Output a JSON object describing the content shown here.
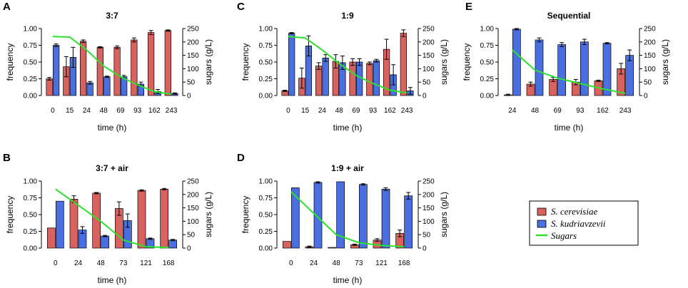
{
  "colors": {
    "cerevisiae": "#d9625f",
    "kudriavzevii": "#4a6fe0",
    "sugars": "#2ee02e",
    "axis": "#000000"
  },
  "legend": {
    "items": [
      {
        "label": "S. cerevisiae",
        "key": "cerevisiae"
      },
      {
        "label": "S. kudriavzevii",
        "key": "kudriavzevii"
      },
      {
        "label": "Sugars",
        "key": "sugars"
      }
    ]
  },
  "chart_data": [
    {
      "panel": "A",
      "title": "3:7",
      "type": "bar+line",
      "xlabel": "time (h)",
      "ylabel": "frequency",
      "y2label": "sugars (g/L)",
      "ylim": [
        0,
        1
      ],
      "y2lim": [
        0,
        250
      ],
      "yticks": [
        "0.00",
        "0.25",
        "0.50",
        "0.75",
        "1.00"
      ],
      "y2ticks": [
        "0",
        "50",
        "100",
        "150",
        "200",
        "250"
      ],
      "categories": [
        "0",
        "15",
        "24",
        "48",
        "69",
        "93",
        "162",
        "243"
      ],
      "series": [
        {
          "name": "S. cerevisiae",
          "values": [
            0.25,
            0.43,
            0.81,
            0.72,
            0.72,
            0.83,
            0.94,
            0.97
          ],
          "errors": [
            0.02,
            0.15,
            0.02,
            0.01,
            0.02,
            0.03,
            0.03,
            0.01
          ]
        },
        {
          "name": "S. kudriavzevii",
          "values": [
            0.75,
            0.57,
            0.19,
            0.28,
            0.28,
            0.17,
            0.06,
            0.03
          ],
          "errors": [
            0.02,
            0.15,
            0.02,
            0.01,
            0.02,
            0.03,
            0.03,
            0.01
          ]
        }
      ],
      "sugars": [
        220,
        218,
        170,
        110,
        70,
        40,
        15,
        5
      ]
    },
    {
      "panel": "C",
      "title": "1:9",
      "type": "bar+line",
      "xlabel": "time (h)",
      "ylabel": "frequency",
      "y2label": "sugars (g/L)",
      "ylim": [
        0,
        1
      ],
      "y2lim": [
        0,
        250
      ],
      "yticks": [
        "0.00",
        "0.25",
        "0.50",
        "0.75",
        "1.00"
      ],
      "y2ticks": [
        "0",
        "50",
        "100",
        "150",
        "200",
        "250"
      ],
      "categories": [
        "0",
        "15",
        "24",
        "48",
        "69",
        "93",
        "162",
        "243"
      ],
      "series": [
        {
          "name": "S. cerevisiae",
          "values": [
            0.07,
            0.26,
            0.44,
            0.51,
            0.5,
            0.48,
            0.69,
            0.93
          ],
          "errors": [
            0.01,
            0.15,
            0.05,
            0.1,
            0.05,
            0.02,
            0.15,
            0.05
          ]
        },
        {
          "name": "S. kudriavzevii",
          "values": [
            0.93,
            0.74,
            0.56,
            0.49,
            0.5,
            0.52,
            0.31,
            0.07
          ],
          "errors": [
            0.01,
            0.15,
            0.05,
            0.1,
            0.05,
            0.02,
            0.15,
            0.05
          ]
        }
      ],
      "sugars": [
        220,
        215,
        170,
        120,
        75,
        45,
        20,
        10
      ]
    },
    {
      "panel": "E",
      "title": "Sequential",
      "type": "bar+line",
      "xlabel": "time (h)",
      "ylabel": "frequency",
      "y2label": "sugars (g/L)",
      "ylim": [
        0,
        1
      ],
      "y2lim": [
        0,
        250
      ],
      "yticks": [
        "0.00",
        "0.25",
        "0.50",
        "0.75",
        "1.00"
      ],
      "y2ticks": [
        "0",
        "50",
        "100",
        "150",
        "200",
        "250"
      ],
      "categories": [
        "24",
        "48",
        "69",
        "93",
        "162",
        "243"
      ],
      "series": [
        {
          "name": "S. cerevisiae",
          "values": [
            0.01,
            0.17,
            0.24,
            0.2,
            0.22,
            0.4
          ],
          "errors": [
            0.01,
            0.03,
            0.03,
            0.04,
            0.01,
            0.08
          ]
        },
        {
          "name": "S. kudriavzevii",
          "values": [
            0.99,
            0.83,
            0.76,
            0.8,
            0.78,
            0.6
          ],
          "errors": [
            0.01,
            0.03,
            0.03,
            0.04,
            0.01,
            0.08
          ]
        }
      ],
      "sugars": [
        170,
        95,
        65,
        45,
        25,
        8
      ]
    },
    {
      "panel": "B",
      "title": "3:7 + air",
      "type": "bar+line",
      "xlabel": "time (h)",
      "ylabel": "frequency",
      "y2label": "sugars (g/L)",
      "ylim": [
        0,
        1
      ],
      "y2lim": [
        0,
        250
      ],
      "yticks": [
        "0.00",
        "0.25",
        "0.50",
        "0.75",
        "1.00"
      ],
      "y2ticks": [
        "0",
        "50",
        "100",
        "150",
        "200",
        "250"
      ],
      "categories": [
        "0",
        "24",
        "48",
        "73",
        "121",
        "168"
      ],
      "series": [
        {
          "name": "S. cerevisiae",
          "values": [
            0.3,
            0.73,
            0.82,
            0.59,
            0.86,
            0.88
          ],
          "errors": [
            0.0,
            0.05,
            0.01,
            0.1,
            0.01,
            0.01
          ]
        },
        {
          "name": "S. kudriavzevii",
          "values": [
            0.7,
            0.27,
            0.18,
            0.41,
            0.14,
            0.12
          ],
          "errors": [
            0.0,
            0.05,
            0.01,
            0.1,
            0.01,
            0.01
          ]
        }
      ],
      "sugars": [
        220,
        160,
        100,
        30,
        5,
        2
      ]
    },
    {
      "panel": "D",
      "title": "1:9 + air",
      "type": "bar+line",
      "xlabel": "time (h)",
      "ylabel": "frequency",
      "y2label": "sugars (g/L)",
      "ylim": [
        0,
        1
      ],
      "y2lim": [
        0,
        250
      ],
      "yticks": [
        "0.00",
        "0.25",
        "0.50",
        "0.75",
        "1.00"
      ],
      "y2ticks": [
        "0",
        "50",
        "100",
        "150",
        "200",
        "250"
      ],
      "categories": [
        "0",
        "24",
        "48",
        "73",
        "121",
        "168"
      ],
      "series": [
        {
          "name": "S. cerevisiae",
          "values": [
            0.1,
            0.02,
            0.01,
            0.05,
            0.12,
            0.22
          ],
          "errors": [
            0.0,
            0.01,
            0.0,
            0.01,
            0.02,
            0.05
          ]
        },
        {
          "name": "S. kudriavzevii",
          "values": [
            0.9,
            0.98,
            0.99,
            0.95,
            0.88,
            0.78
          ],
          "errors": [
            0.0,
            0.01,
            0.0,
            0.01,
            0.02,
            0.05
          ]
        }
      ],
      "sugars": [
        210,
        130,
        50,
        20,
        10,
        5
      ]
    }
  ]
}
